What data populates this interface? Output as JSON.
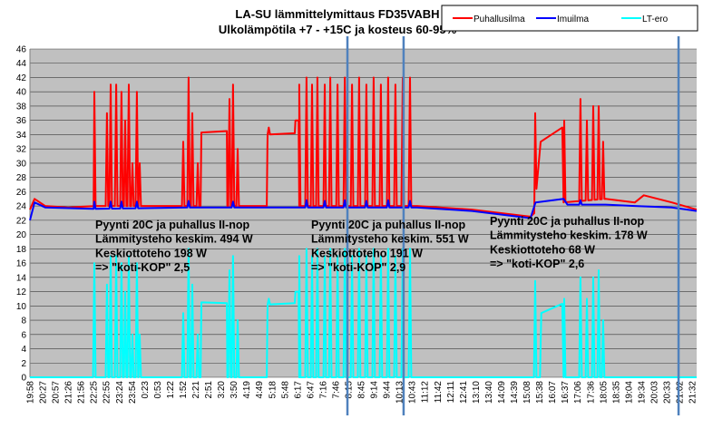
{
  "chart_data": {
    "type": "line",
    "title": "LA-SU lämmittelymittaus  FD35VABH",
    "subtitle": "Ulkolämpötila +7 - +15C ja kosteus 60-95%",
    "xlabel": "",
    "ylabel": "",
    "ylim": [
      0,
      46
    ],
    "yticks": [
      0,
      2,
      4,
      6,
      8,
      10,
      12,
      14,
      16,
      18,
      20,
      22,
      24,
      26,
      28,
      30,
      32,
      34,
      36,
      38,
      40,
      42,
      44,
      46
    ],
    "grid": true,
    "legend_position": "top-right",
    "x_unit": "category index of time labels",
    "categories": [
      "19:58",
      "20:27",
      "20:57",
      "21:26",
      "21:56",
      "22:25",
      "22:55",
      "23:24",
      "23:54",
      "0:23",
      "0:53",
      "1:22",
      "1:52",
      "2:21",
      "2:51",
      "3:20",
      "3:50",
      "4:19",
      "4:49",
      "5:18",
      "5:48",
      "6:17",
      "6:47",
      "7:16",
      "7:46",
      "8:15",
      "8:45",
      "9:14",
      "9:44",
      "10:13",
      "10:43",
      "11:12",
      "11:42",
      "12:11",
      "12:41",
      "13:10",
      "13:40",
      "14:09",
      "14:39",
      "15:08",
      "15:38",
      "16:07",
      "16:37",
      "17:06",
      "17:36",
      "18:05",
      "18:35",
      "19:04",
      "19:34",
      "20:03",
      "20:33",
      "21:02",
      "21:32"
    ],
    "series": [
      {
        "name": "Puhallusilma",
        "color": "#ff0000",
        "base": [
          [
            0,
            23.5
          ],
          [
            0.36,
            25
          ],
          [
            1.2,
            24
          ],
          [
            3,
            23.8
          ],
          [
            5,
            24
          ],
          [
            13.4,
            24
          ],
          [
            13.46,
            34.3
          ],
          [
            15.46,
            34.5
          ],
          [
            15.5,
            24
          ],
          [
            18.6,
            24
          ],
          [
            18.66,
            34
          ],
          [
            20.8,
            34.2
          ],
          [
            20.85,
            36
          ],
          [
            21.1,
            36
          ],
          [
            21.15,
            24
          ],
          [
            30.4,
            24
          ],
          [
            34.7,
            23.5
          ],
          [
            39.3,
            22.5
          ],
          [
            39.6,
            23
          ],
          [
            40.1,
            33
          ],
          [
            41.8,
            35
          ],
          [
            41.9,
            24.5
          ],
          [
            45.2,
            25
          ],
          [
            47.5,
            24.5
          ],
          [
            48.2,
            25.5
          ],
          [
            50.4,
            24.5
          ],
          [
            52.35,
            23.5
          ]
        ],
        "spikes": [
          [
            5.06,
            40
          ],
          [
            6.05,
            37
          ],
          [
            6.34,
            41
          ],
          [
            6.77,
            41
          ],
          [
            7.19,
            40
          ],
          [
            7.48,
            36
          ],
          [
            7.76,
            41
          ],
          [
            8.05,
            30
          ],
          [
            8.4,
            40
          ],
          [
            8.62,
            30
          ],
          [
            12.04,
            33
          ],
          [
            12.46,
            42
          ],
          [
            12.75,
            37
          ],
          [
            13.18,
            30
          ],
          [
            15.67,
            39
          ],
          [
            15.95,
            41
          ],
          [
            16.31,
            32
          ],
          [
            18.75,
            35
          ],
          [
            21.15,
            41
          ],
          [
            21.72,
            42
          ],
          [
            22.15,
            41
          ],
          [
            22.57,
            42
          ],
          [
            23.15,
            41
          ],
          [
            23.58,
            42
          ],
          [
            24.15,
            41
          ],
          [
            24.72,
            42
          ],
          [
            25.29,
            41
          ],
          [
            25.85,
            42
          ],
          [
            26.42,
            41
          ],
          [
            26.99,
            42
          ],
          [
            27.56,
            41
          ],
          [
            28.13,
            42
          ],
          [
            28.7,
            41
          ],
          [
            29.27,
            42
          ],
          [
            29.84,
            42
          ],
          [
            39.67,
            37
          ],
          [
            41.95,
            36
          ],
          [
            43.23,
            39
          ],
          [
            43.73,
            36
          ],
          [
            44.23,
            38
          ],
          [
            44.66,
            38
          ],
          [
            45.01,
            33
          ]
        ]
      },
      {
        "name": "Imuilma",
        "color": "#0000ff",
        "base": [
          [
            0,
            22
          ],
          [
            0.36,
            24.5
          ],
          [
            1.2,
            23.8
          ],
          [
            5,
            23.6
          ],
          [
            13,
            23.8
          ],
          [
            20,
            23.8
          ],
          [
            30.4,
            23.8
          ],
          [
            34.7,
            23.3
          ],
          [
            39.3,
            22.3
          ],
          [
            39.7,
            24.5
          ],
          [
            41.9,
            25
          ],
          [
            42.2,
            24.2
          ],
          [
            45.2,
            24.2
          ],
          [
            47.5,
            24
          ],
          [
            50.4,
            23.8
          ],
          [
            52.35,
            23.3
          ]
        ],
        "spikes": [
          [
            5.06,
            24.6
          ],
          [
            6.34,
            24.6
          ],
          [
            7.19,
            24.6
          ],
          [
            8.4,
            24.6
          ],
          [
            12.46,
            24.7
          ],
          [
            15.95,
            24.6
          ],
          [
            21.72,
            24.8
          ],
          [
            23.15,
            24.7
          ],
          [
            24.72,
            24.8
          ],
          [
            26.42,
            24.7
          ],
          [
            28.13,
            24.8
          ],
          [
            29.84,
            24.7
          ],
          [
            43.23,
            24.8
          ]
        ]
      },
      {
        "name": "LT-ero",
        "color": "#00ffff",
        "base": [
          [
            0,
            0
          ],
          [
            13.4,
            0
          ],
          [
            13.46,
            10.5
          ],
          [
            15.46,
            10.4
          ],
          [
            15.5,
            0
          ],
          [
            18.6,
            0
          ],
          [
            18.66,
            10.2
          ],
          [
            20.8,
            10.4
          ],
          [
            20.85,
            12
          ],
          [
            21.1,
            12
          ],
          [
            21.15,
            0
          ],
          [
            40.05,
            0
          ],
          [
            40.15,
            9
          ],
          [
            41.8,
            10.3
          ],
          [
            41.9,
            0
          ],
          [
            52.35,
            0
          ]
        ],
        "spikes": [
          [
            5.06,
            16
          ],
          [
            6.05,
            13
          ],
          [
            6.34,
            17
          ],
          [
            6.77,
            17
          ],
          [
            7.19,
            16
          ],
          [
            7.48,
            12
          ],
          [
            7.76,
            17
          ],
          [
            8.05,
            6
          ],
          [
            8.4,
            16
          ],
          [
            8.62,
            6
          ],
          [
            12.04,
            9
          ],
          [
            12.46,
            18
          ],
          [
            12.75,
            13
          ],
          [
            13.18,
            6
          ],
          [
            15.67,
            15
          ],
          [
            15.95,
            17
          ],
          [
            16.31,
            8
          ],
          [
            18.75,
            11
          ],
          [
            21.15,
            17
          ],
          [
            21.72,
            18
          ],
          [
            22.15,
            17
          ],
          [
            22.57,
            18
          ],
          [
            23.15,
            17
          ],
          [
            23.58,
            18
          ],
          [
            24.15,
            17
          ],
          [
            24.72,
            18
          ],
          [
            25.29,
            17
          ],
          [
            25.85,
            18
          ],
          [
            26.42,
            17
          ],
          [
            26.99,
            18
          ],
          [
            27.56,
            17
          ],
          [
            28.13,
            18
          ],
          [
            28.7,
            17
          ],
          [
            29.27,
            18
          ],
          [
            29.84,
            18
          ],
          [
            39.67,
            13.5
          ],
          [
            41.95,
            11
          ],
          [
            43.23,
            14
          ],
          [
            43.73,
            11
          ],
          [
            44.23,
            14
          ],
          [
            44.66,
            15
          ],
          [
            45.01,
            8
          ]
        ]
      }
    ],
    "markers": {
      "color": "#4f81bd",
      "x": [
        24.93,
        29.34,
        50.93
      ]
    },
    "annotations": [
      {
        "lines": [
          "Pyynti 20C ja puhallus II-nop",
          "Lämmitysteho keskim. 494 W",
          "Keskiottoteho 198 W",
          "=> \"koti-KOP\" 2,5"
        ]
      },
      {
        "lines": [
          "Pyynti 20C ja puhallus II-nop",
          "Lämmitysteho keskim. 551 W",
          "Keskiottoteho 191 W",
          "=> \"koti-KOP\" 2,9"
        ]
      },
      {
        "lines": [
          "Pyynti 20C ja puhallus II-nop",
          "Lämmitysteho keskim. 178 W",
          "Keskiottoteho 68 W",
          "=> \"koti-KOP\" 2,6"
        ]
      }
    ]
  }
}
